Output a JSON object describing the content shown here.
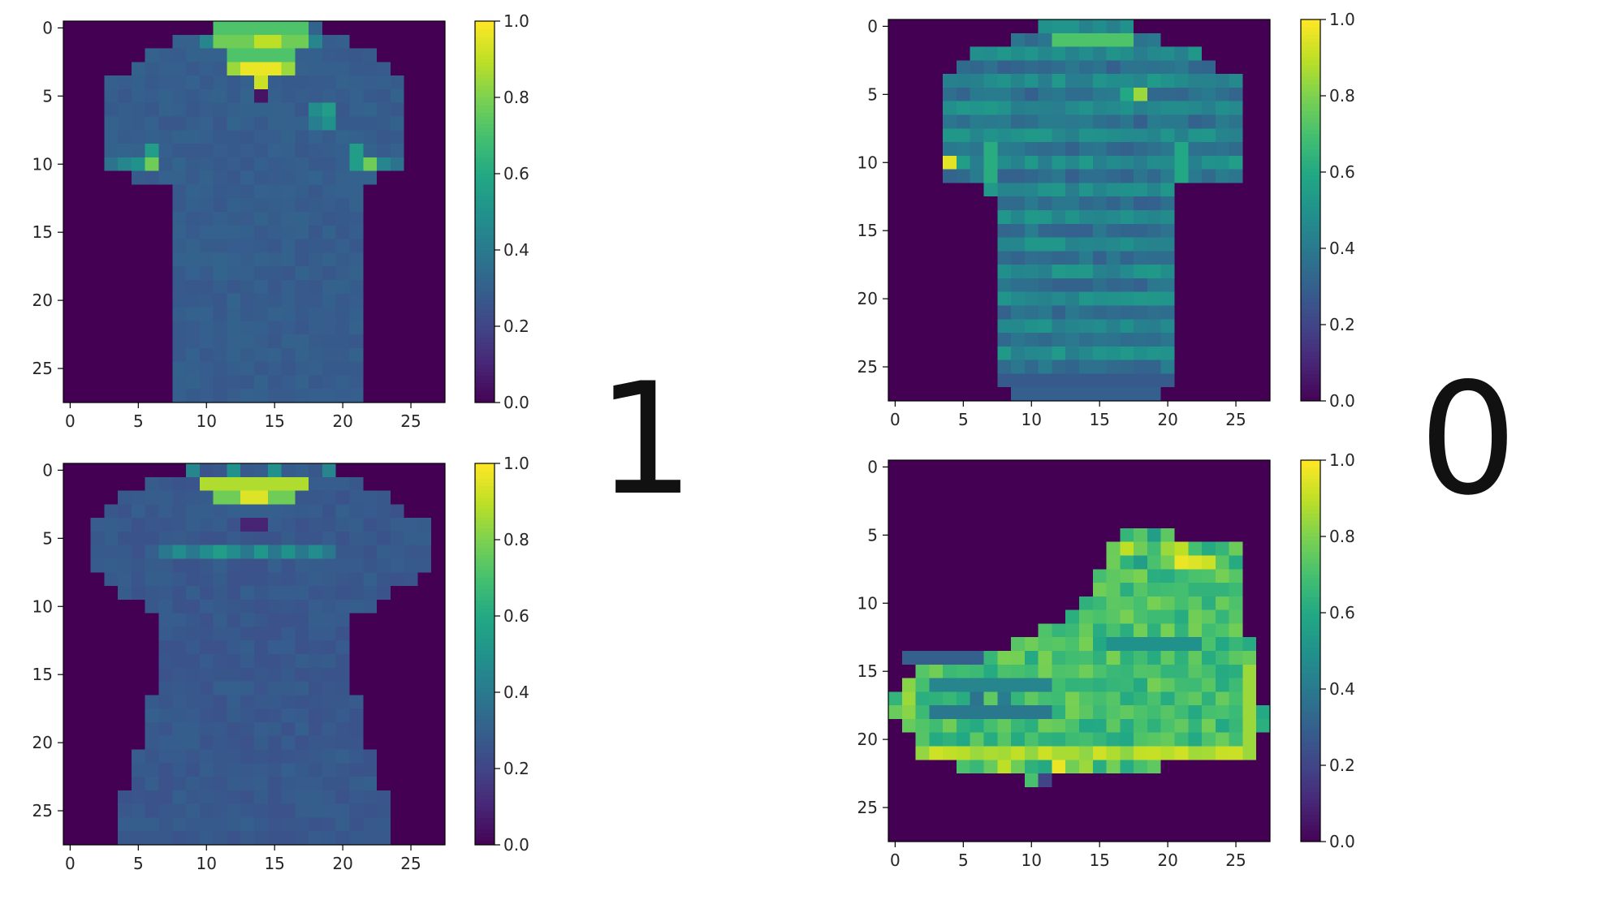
{
  "pair_labels": [
    "1",
    "0"
  ],
  "chart_data": [
    {
      "type": "heatmap",
      "panel": "top-left",
      "content": "t-shirt",
      "grid": [
        28,
        28
      ],
      "xlim": [
        0,
        27
      ],
      "ylim": [
        0,
        27
      ],
      "x_ticks": [
        "0",
        "5",
        "10",
        "15",
        "20",
        "25"
      ],
      "y_ticks": [
        "0",
        "5",
        "10",
        "15",
        "20",
        "25"
      ],
      "colorbar": {
        "range": [
          0.0,
          1.0
        ],
        "ticks": [
          "0.0",
          "0.2",
          "0.4",
          "0.6",
          "0.8",
          "1.0"
        ],
        "colormap": "viridis"
      },
      "grid_lines": false
    },
    {
      "type": "heatmap",
      "panel": "top-right",
      "content": "striped-shirt",
      "grid": [
        28,
        28
      ],
      "xlim": [
        0,
        27
      ],
      "ylim": [
        0,
        27
      ],
      "x_ticks": [
        "0",
        "5",
        "10",
        "15",
        "20",
        "25"
      ],
      "y_ticks": [
        "0",
        "5",
        "10",
        "15",
        "20",
        "25"
      ],
      "colorbar": {
        "range": [
          0.0,
          1.0
        ],
        "ticks": [
          "0.0",
          "0.2",
          "0.4",
          "0.6",
          "0.8",
          "1.0"
        ],
        "colormap": "viridis"
      },
      "grid_lines": false
    },
    {
      "type": "heatmap",
      "panel": "bottom-left",
      "content": "dress-top",
      "grid": [
        28,
        28
      ],
      "xlim": [
        0,
        27
      ],
      "ylim": [
        0,
        27
      ],
      "x_ticks": [
        "0",
        "5",
        "10",
        "15",
        "20",
        "25"
      ],
      "y_ticks": [
        "0",
        "5",
        "10",
        "15",
        "20",
        "25"
      ],
      "colorbar": {
        "range": [
          0.0,
          1.0
        ],
        "ticks": [
          "0.0",
          "0.2",
          "0.4",
          "0.6",
          "0.8",
          "1.0"
        ],
        "colormap": "viridis"
      },
      "grid_lines": false
    },
    {
      "type": "heatmap",
      "panel": "bottom-right",
      "content": "ankle-boot",
      "grid": [
        28,
        28
      ],
      "xlim": [
        0,
        27
      ],
      "ylim": [
        0,
        27
      ],
      "x_ticks": [
        "0",
        "5",
        "10",
        "15",
        "20",
        "25"
      ],
      "y_ticks": [
        "0",
        "5",
        "10",
        "15",
        "20",
        "25"
      ],
      "colorbar": {
        "range": [
          0.0,
          1.0
        ],
        "ticks": [
          "0.0",
          "0.2",
          "0.4",
          "0.6",
          "0.8",
          "1.0"
        ],
        "colormap": "viridis"
      },
      "grid_lines": false
    }
  ]
}
